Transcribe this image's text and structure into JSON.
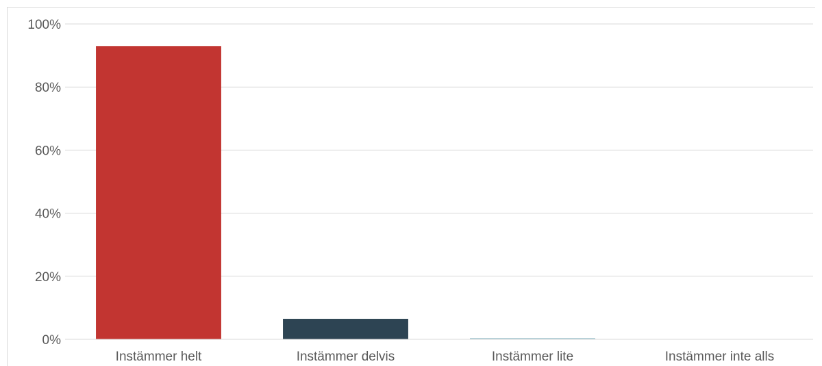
{
  "chart_data": {
    "type": "bar",
    "categories": [
      "Instämmer helt",
      "Instämmer delvis",
      "Instämmer lite",
      "Instämmer inte alls"
    ],
    "values": [
      93,
      6.5,
      0.4,
      0
    ],
    "unit": "%",
    "ylim": [
      0,
      100
    ],
    "yticks": [
      0,
      20,
      40,
      60,
      80,
      100
    ],
    "ytick_labels": [
      "0%",
      "20%",
      "40%",
      "60%",
      "80%",
      "100%"
    ],
    "grid": true,
    "colors": [
      "#c23531",
      "#2d4453",
      "#a7c9d2",
      "#c0c0c0"
    ]
  }
}
